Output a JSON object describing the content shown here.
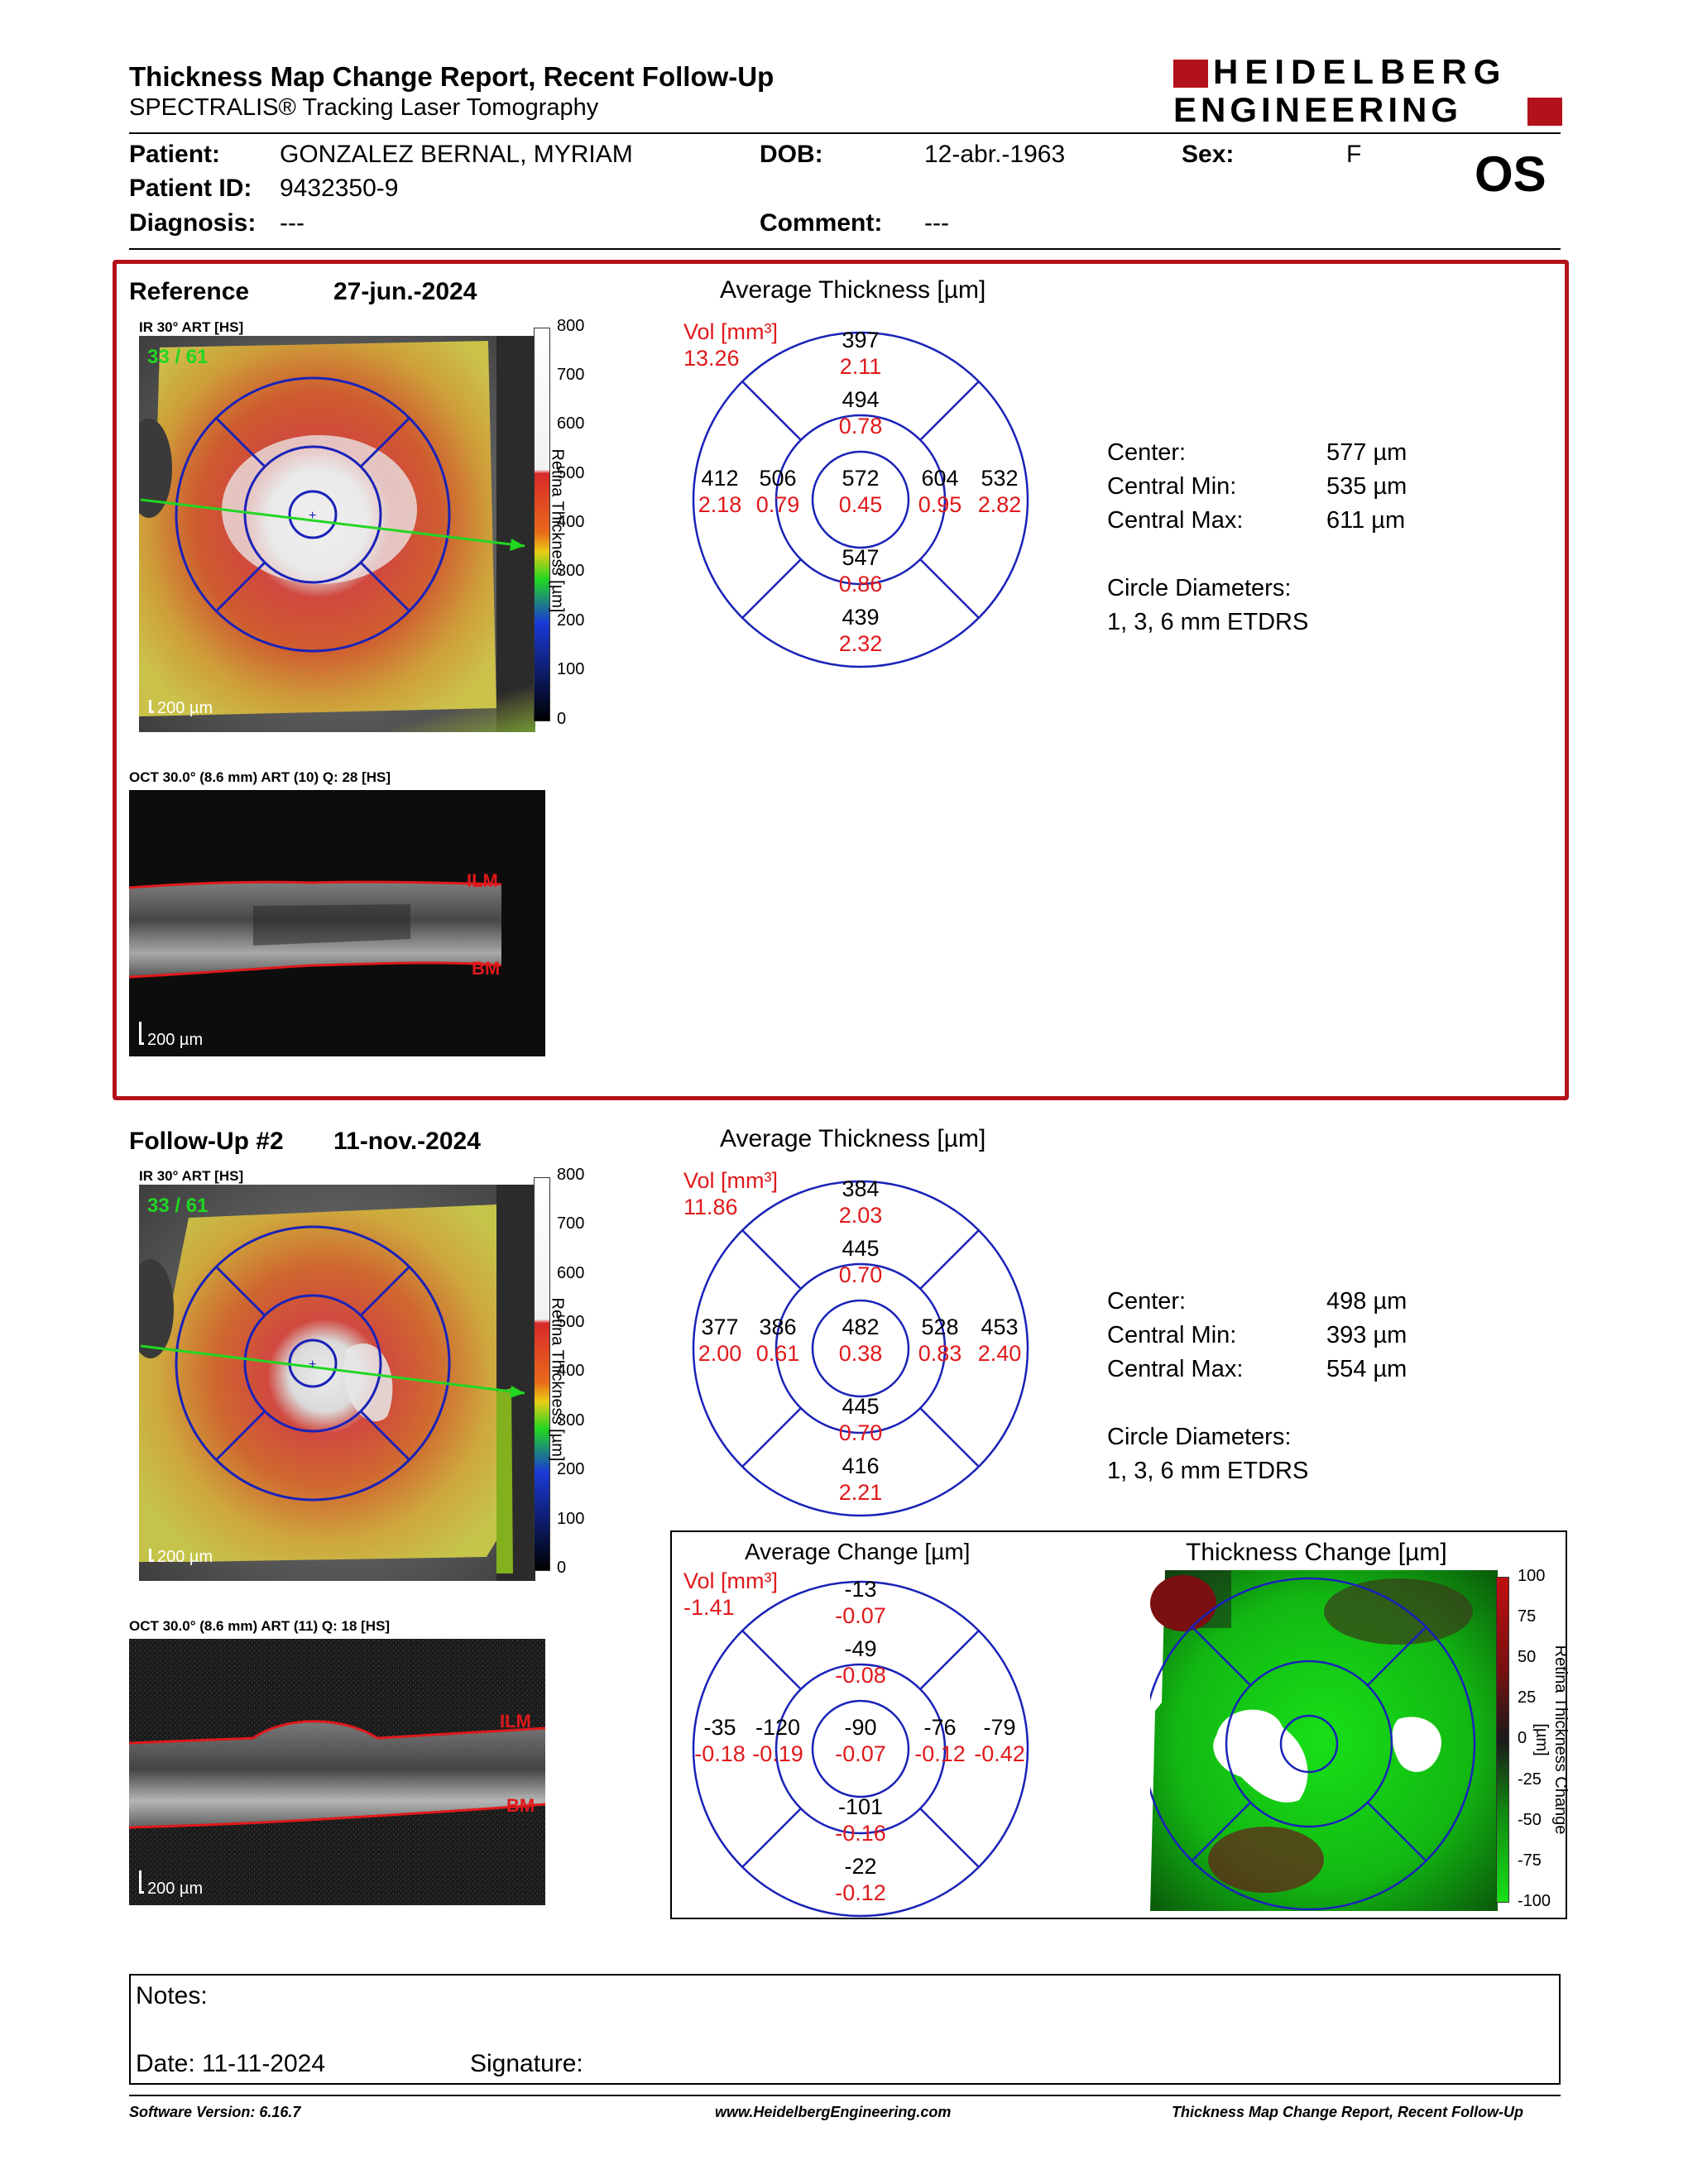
{
  "header": {
    "title": "Thickness Map Change Report, Recent Follow-Up",
    "subtitle": "SPECTRALIS® Tracking Laser Tomography",
    "brand_line1": "HEIDELBERG",
    "brand_line2": "ENGINEERING",
    "eye": "OS"
  },
  "patient": {
    "patient_label": "Patient:",
    "patient_name": "GONZALEZ BERNAL, MYRIAM",
    "dob_label": "DOB:",
    "dob": "12-abr.-1963",
    "sex_label": "Sex:",
    "sex": "F",
    "id_label": "Patient ID:",
    "id": "9432350-9",
    "diagnosis_label": "Diagnosis:",
    "diagnosis": "---",
    "comment_label": "Comment:",
    "comment": "---"
  },
  "reference": {
    "label": "Reference",
    "date": "27-jun.-2024",
    "ir_caption": "IR 30° ART [HS]",
    "frame_counter": "33 / 61",
    "scale_bar": "200 µm",
    "colorbar_title": "Retina Thickness [µm]",
    "colorbar_ticks": [
      "800",
      "700",
      "600",
      "500",
      "400",
      "300",
      "200",
      "100",
      "0"
    ],
    "oct_caption": "OCT 30.0° (8.6 mm) ART (10) Q: 28 [HS]",
    "oct_scale_bar": "200 µm",
    "ilm": "ILM",
    "bm": "BM",
    "avg_title": "Average Thickness [µm]",
    "vol_label": "Vol [mm³]",
    "vol_total": "13.26",
    "sectors": {
      "outer_top": {
        "t": "397",
        "v": "2.11"
      },
      "inner_top": {
        "t": "494",
        "v": "0.78"
      },
      "outer_left": {
        "t": "412",
        "v": "2.18"
      },
      "inner_left": {
        "t": "506",
        "v": "0.79"
      },
      "center": {
        "t": "572",
        "v": "0.45"
      },
      "inner_right": {
        "t": "604",
        "v": "0.95"
      },
      "outer_right": {
        "t": "532",
        "v": "2.82"
      },
      "inner_bottom": {
        "t": "547",
        "v": "0.86"
      },
      "outer_bottom": {
        "t": "439",
        "v": "2.32"
      }
    },
    "stats": {
      "center_label": "Center:",
      "center": "577 µm",
      "min_label": "Central Min:",
      "min": "535 µm",
      "max_label": "Central Max:",
      "max": "611 µm",
      "diam_label": "Circle Diameters:",
      "diam": "1, 3, 6 mm ETDRS"
    }
  },
  "followup": {
    "label": "Follow-Up #2",
    "date": "11-nov.-2024",
    "ir_caption": "IR 30° ART [HS]",
    "frame_counter": "33 / 61",
    "scale_bar": "200 µm",
    "colorbar_title": "Retina Thickness [µm]",
    "colorbar_ticks": [
      "800",
      "700",
      "600",
      "500",
      "400",
      "300",
      "200",
      "100",
      "0"
    ],
    "oct_caption": "OCT 30.0° (8.6 mm) ART (11) Q: 18 [HS]",
    "oct_scale_bar": "200 µm",
    "ilm": "ILM",
    "bm": "BM",
    "avg_title": "Average Thickness [µm]",
    "vol_label": "Vol [mm³]",
    "vol_total": "11.86",
    "sectors": {
      "outer_top": {
        "t": "384",
        "v": "2.03"
      },
      "inner_top": {
        "t": "445",
        "v": "0.70"
      },
      "outer_left": {
        "t": "377",
        "v": "2.00"
      },
      "inner_left": {
        "t": "386",
        "v": "0.61"
      },
      "center": {
        "t": "482",
        "v": "0.38"
      },
      "inner_right": {
        "t": "528",
        "v": "0.83"
      },
      "outer_right": {
        "t": "453",
        "v": "2.40"
      },
      "inner_bottom": {
        "t": "445",
        "v": "0.70"
      },
      "outer_bottom": {
        "t": "416",
        "v": "2.21"
      }
    },
    "stats": {
      "center_label": "Center:",
      "center": "498 µm",
      "min_label": "Central Min:",
      "min": "393 µm",
      "max_label": "Central Max:",
      "max": "554 µm",
      "diam_label": "Circle Diameters:",
      "diam": "1, 3, 6 mm ETDRS"
    }
  },
  "change": {
    "avg_title": "Average Change [µm]",
    "vol_label": "Vol [mm³]",
    "vol_total": "-1.41",
    "sectors": {
      "outer_top": {
        "t": "-13",
        "v": "-0.07"
      },
      "inner_top": {
        "t": "-49",
        "v": "-0.08"
      },
      "outer_left": {
        "t": "-35",
        "v": "-0.18"
      },
      "inner_left": {
        "t": "-120",
        "v": "-0.19"
      },
      "center": {
        "t": "-90",
        "v": "-0.07"
      },
      "inner_right": {
        "t": "-76",
        "v": "-0.12"
      },
      "outer_right": {
        "t": "-79",
        "v": "-0.42"
      },
      "inner_bottom": {
        "t": "-101",
        "v": "-0.16"
      },
      "outer_bottom": {
        "t": "-22",
        "v": "-0.12"
      }
    },
    "map_title": "Thickness Change [µm]",
    "colorbar_title": "Retina Thickness Change [µm]",
    "colorbar_ticks": [
      "100",
      "75",
      "50",
      "25",
      "0",
      "-25",
      "-50",
      "-75",
      "-100"
    ]
  },
  "notes": {
    "notes_label": "Notes:",
    "date_label": "Date: 11-11-2024",
    "signature_label": "Signature:"
  },
  "footer": {
    "software": "Software Version: 6.16.7",
    "website": "www.HeidelbergEngineering.com",
    "report": "Thickness Map Change Report, Recent Follow-Up"
  },
  "colors": {
    "frame_red": "#b3121b",
    "grid_blue": "#1a22b8",
    "volume_red": "#e0191b",
    "counter_green": "#22d622",
    "scan_line_green": "#22d622"
  }
}
